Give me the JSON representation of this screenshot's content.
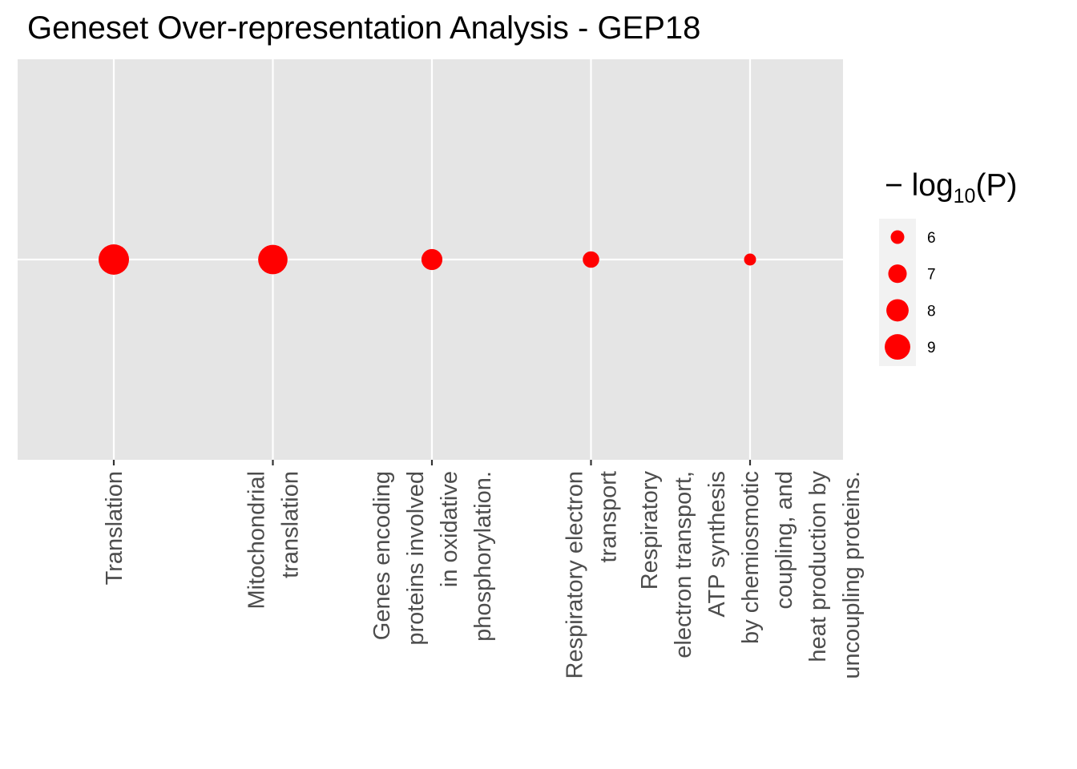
{
  "chart_data": {
    "type": "scatter",
    "title": "Geneset Over-representation Analysis - GEP18",
    "categories": [
      "Translation",
      "Mitochondrial translation",
      "Genes encoding proteins involved in oxidative phosphorylation.",
      "Respiratory electron transport",
      "Respiratory electron transport, ATP synthesis by chemiosmotic coupling, and heat production by uncoupling proteins."
    ],
    "category_label_lines": [
      [
        "Translation"
      ],
      [
        "Mitochondrial",
        "translation"
      ],
      [
        "Genes encoding",
        "proteins involved",
        "in oxidative",
        "phosphorylation."
      ],
      [
        "Respiratory electron",
        "transport"
      ],
      [
        "Respiratory",
        "electron transport,",
        "ATP synthesis",
        "by chemiosmotic",
        "coupling, and",
        "heat production by",
        "uncoupling proteins."
      ]
    ],
    "values": [
      9.2,
      8.9,
      6.9,
      6.1,
      5.5
    ],
    "point_color": "#ff0000",
    "panel_background": "#e5e5e5",
    "grid_color": "#ffffff",
    "grid": true,
    "xlabel": "",
    "ylabel": "",
    "legend": {
      "title_prefix": "− log",
      "title_subscript": "10",
      "title_suffix": "(P)",
      "breaks": [
        6,
        7,
        8,
        9
      ],
      "labels": [
        "6",
        "7",
        "8",
        "9"
      ],
      "placement": "right"
    }
  }
}
